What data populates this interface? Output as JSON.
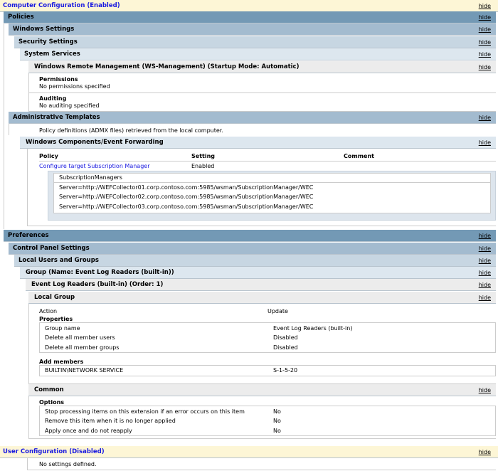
{
  "hide_label": "hide",
  "computer_config": {
    "title": "Computer Configuration (Enabled)"
  },
  "policies": {
    "title": "Policies"
  },
  "windows_settings": {
    "title": "Windows Settings"
  },
  "security_settings": {
    "title": "Security Settings"
  },
  "system_services": {
    "title": "System Services"
  },
  "winrm": {
    "title": "Windows Remote Management (WS-Management) (Startup Mode: Automatic)",
    "permissions_label": "Permissions",
    "permissions_value": "No permissions specified",
    "auditing_label": "Auditing",
    "auditing_value": "No auditing specified"
  },
  "admin_templates": {
    "title": "Administrative Templates",
    "note": "Policy definitions (ADMX files) retrieved from the local computer."
  },
  "event_forwarding": {
    "title": "Windows Components/Event Forwarding",
    "columns": [
      "Policy",
      "Setting",
      "Comment"
    ],
    "policy": "Configure target Subscription Manager",
    "setting": "Enabled",
    "sub_header": "SubscriptionManagers",
    "servers": [
      "Server=http://WEFCollector01.corp.contoso.com:5985/wsman/SubscriptionManager/WEC",
      "Server=http://WEFCollector02.corp.contoso.com:5985/wsman/SubscriptionManager/WEC",
      "Server=http://WEFCollector03.corp.contoso.com:5985/wsman/SubscriptionManager/WEC"
    ]
  },
  "preferences": {
    "title": "Preferences"
  },
  "control_panel": {
    "title": "Control Panel Settings"
  },
  "local_users": {
    "title": "Local Users and Groups"
  },
  "group": {
    "title": "Group (Name: Event Log Readers (built-in))"
  },
  "elr": {
    "title": "Event Log Readers (built-in) (Order: 1)"
  },
  "local_group": {
    "title": "Local Group",
    "action_label": "Action",
    "action_value": "Update",
    "properties_label": "Properties",
    "properties": [
      {
        "k": "Group name",
        "v": "Event Log Readers (built-in)"
      },
      {
        "k": "Delete all member users",
        "v": "Disabled"
      },
      {
        "k": "Delete all member groups",
        "v": "Disabled"
      }
    ],
    "add_members_label": "Add members",
    "member_name": "BUILTIN\\NETWORK SERVICE",
    "member_sid": "S-1-5-20"
  },
  "common": {
    "title": "Common",
    "options_label": "Options",
    "options": [
      {
        "k": "Stop processing items on this extension if an error occurs on this item",
        "v": "No"
      },
      {
        "k": "Remove this item when it is no longer applied",
        "v": "No"
      },
      {
        "k": "Apply once and do not reapply",
        "v": "No"
      }
    ]
  },
  "user_config": {
    "title": "User Configuration (Disabled)",
    "note": "No settings defined."
  }
}
